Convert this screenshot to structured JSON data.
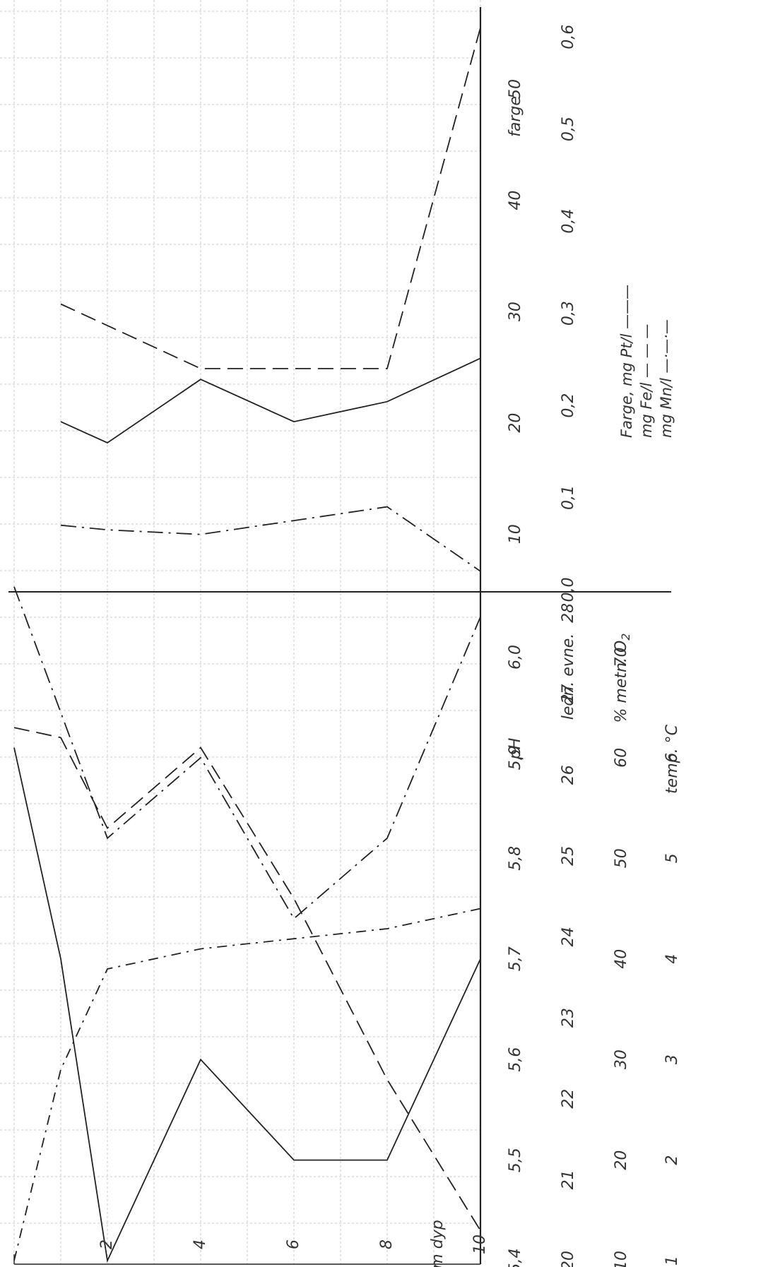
{
  "chart_data": [
    {
      "type": "line",
      "panel": "upper",
      "x": [
        1,
        2,
        4,
        6,
        8,
        10
      ],
      "x_unit": "m dyp",
      "scales": [
        {
          "id": "farge_pt",
          "ticks": [
            "10",
            "20",
            "30",
            "40",
            "50"
          ],
          "range": [
            5,
            58
          ],
          "label": "farge"
        },
        {
          "id": "fe_mn",
          "ticks": [
            "0,0",
            "0,1",
            "0,2",
            "0,3",
            "0,4",
            "0,5",
            "0,6"
          ],
          "range": [
            0.0,
            0.64
          ]
        }
      ],
      "series": [
        {
          "name": "Farge, mg Pt/l",
          "legend_suffix": "———",
          "scale": "farge_pt",
          "style": "solid",
          "color": "#222222",
          "x": [
            1,
            2,
            4,
            6,
            8,
            10
          ],
          "values": [
            20.1,
            18.2,
            23.9,
            20.1,
            21.9,
            25.8
          ]
        },
        {
          "name": "mg Fe/l",
          "legend_suffix": "— — —",
          "scale": "fe_mn",
          "style": "dashed",
          "color": "#222222",
          "x": [
            1,
            4,
            6,
            8,
            10
          ],
          "values": [
            0.31,
            0.24,
            0.24,
            0.24,
            0.61
          ]
        },
        {
          "name": "mg Mn/l",
          "legend_suffix": "—·—·—",
          "scale": "fe_mn",
          "style": "dashdot",
          "color": "#222222",
          "x": [
            1,
            2,
            4,
            6,
            8,
            10
          ],
          "values": [
            0.07,
            0.065,
            0.06,
            0.075,
            0.09,
            0.02
          ]
        }
      ]
    },
    {
      "type": "line",
      "panel": "lower",
      "x_unit": "m dyp",
      "scales": [
        {
          "id": "ph",
          "ticks": [
            "5,4",
            "5,5",
            "5,6",
            "5,7",
            "5,8",
            "5,9",
            "6,0"
          ],
          "range": [
            5.4,
            6.06
          ],
          "label": "pH"
        },
        {
          "id": "ledn",
          "ticks": [
            "20",
            "21",
            "22",
            "23",
            "24",
            "25",
            "26",
            "27",
            "28"
          ],
          "range": [
            20,
            28.2
          ],
          "label": "ledn. evne."
        },
        {
          "id": "o2",
          "ticks": [
            "10",
            "20",
            "30",
            "40",
            "50",
            "60",
            "70"
          ],
          "range": [
            10,
            76
          ],
          "label": "% metn. O2"
        },
        {
          "id": "temp",
          "ticks": [
            "1",
            "2",
            "3",
            "4",
            "5",
            "6"
          ],
          "range": [
            1,
            7.6
          ],
          "label": "temp. °C"
        }
      ],
      "series": [
        {
          "name": "solid",
          "scale": "ph",
          "style": "solid",
          "color": "#222222",
          "x": [
            0,
            1,
            2,
            4,
            6,
            8,
            10
          ],
          "values": [
            5.91,
            5.7,
            5.4,
            5.6,
            5.5,
            5.5,
            5.7
          ]
        },
        {
          "name": "dashed",
          "scale": "ph",
          "style": "dashed",
          "color": "#222222",
          "x": [
            0,
            1,
            2,
            4,
            6,
            8,
            10
          ],
          "values": [
            5.93,
            5.92,
            5.83,
            5.91,
            5.76,
            5.58,
            5.43
          ]
        },
        {
          "name": "dash-dot long",
          "scale": "ph",
          "style": "dashdot",
          "color": "#222222",
          "x": [
            0,
            2,
            4,
            6,
            8,
            10
          ],
          "values": [
            6.07,
            5.82,
            5.9,
            5.74,
            5.82,
            6.04
          ]
        },
        {
          "name": "dash-dot short",
          "scale": "ph",
          "style": "dashdot2",
          "color": "#222222",
          "x": [
            0,
            1,
            2,
            4,
            6,
            8,
            10
          ],
          "values": [
            5.4,
            5.59,
            5.69,
            5.71,
            5.72,
            5.73,
            5.75
          ]
        }
      ]
    }
  ],
  "labels": {
    "farge": "farge",
    "ph": "pH",
    "ledn": "ledn. evne.",
    "o2": "% metn. O",
    "o2_sub": "2",
    "temp": "temp. °C",
    "depth_title": "m dyp",
    "depth_ticks": [
      "2",
      "4",
      "6",
      "8",
      "10"
    ]
  }
}
